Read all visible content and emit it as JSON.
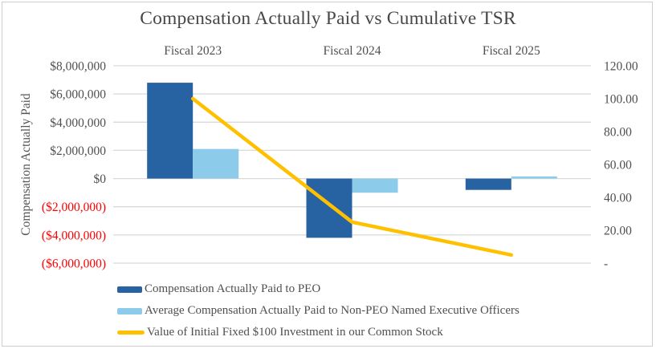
{
  "title": "Compensation Actually Paid vs Cumulative TSR",
  "colors": {
    "peo_bar": "#2763A3",
    "non_peo_bar": "#8CCBE9",
    "tsr_line": "#FFC000",
    "gridline": "#D9D9D9",
    "axis_text": "#4F4F4F",
    "negative_text": "#FF0000",
    "title_text": "#474747",
    "border": "#CFCDCD"
  },
  "chart_data": {
    "type": "bar",
    "subtype": "combo-bar-line",
    "title": "Compensation Actually Paid vs Cumulative TSR",
    "categories": [
      "Fiscal 2023",
      "Fiscal 2024",
      "Fiscal 2025"
    ],
    "series": [
      {
        "name": "Compensation Actually Paid to PEO",
        "type": "bar",
        "axis": "left",
        "color": "#2763A3",
        "values": [
          6800000,
          -4200000,
          -800000
        ]
      },
      {
        "name": "Average Compensation Actually Paid to Non-PEO Named Executive Officers",
        "type": "bar",
        "axis": "left",
        "color": "#8CCBE9",
        "values": [
          2100000,
          -1000000,
          150000
        ]
      },
      {
        "name": "Value of Initial Fixed $100 Investment in our Common Stock",
        "type": "line",
        "axis": "right",
        "color": "#FFC000",
        "values": [
          100,
          25,
          5
        ]
      }
    ],
    "left_axis": {
      "title": "Compensation Actually Paid",
      "ticks": [
        "$8,000,000",
        "$6,000,000",
        "$4,000,000",
        "$2,000,000",
        "$0",
        "($2,000,000)",
        "($4,000,000)",
        "($6,000,000)"
      ],
      "tick_values": [
        8000000,
        6000000,
        4000000,
        2000000,
        0,
        -2000000,
        -4000000,
        -6000000
      ],
      "min": -6000000,
      "max": 8000000
    },
    "right_axis": {
      "ticks": [
        "120.00",
        "100.00",
        "80.00",
        "60.00",
        "40.00",
        "20.00",
        "-"
      ],
      "tick_values": [
        120,
        100,
        80,
        60,
        40,
        20,
        0
      ],
      "min": 0,
      "max": 120
    },
    "grid": true,
    "legend_position": "bottom-left",
    "category_labels_position": "top"
  }
}
